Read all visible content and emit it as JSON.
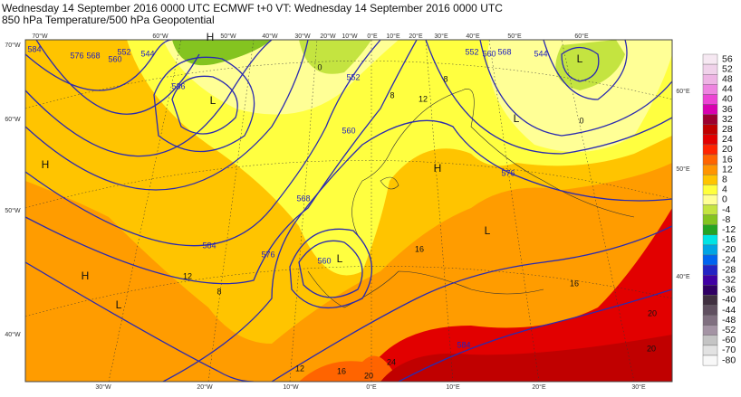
{
  "header": {
    "line1": "Wednesday 14 September 2016 0000 UTC  ECMWF  t+0  VT: Wednesday 14 September 2016 0000 UTC",
    "line2": "850 hPa Temperature/500 hPa Geopotential"
  },
  "colorbar": {
    "labels": [
      "56",
      "52",
      "48",
      "44",
      "40",
      "36",
      "32",
      "28",
      "24",
      "20",
      "16",
      "12",
      "8",
      "4",
      "0",
      "-4",
      "-8",
      "-12",
      "-16",
      "-20",
      "-24",
      "-28",
      "-32",
      "-36",
      "-40",
      "-44",
      "-48",
      "-52",
      "-60",
      "-70",
      "-80"
    ],
    "colors": [
      "#f6e8f2",
      "#f0d2ea",
      "#eeb4e4",
      "#ee84e0",
      "#ec44d4",
      "#d800b0",
      "#9c0030",
      "#c00000",
      "#e20000",
      "#ff2400",
      "#ff6400",
      "#ff9400",
      "#ffc400",
      "#ffff3c",
      "#ffff96",
      "#c4e440",
      "#84c420",
      "#24a424",
      "#00e4e4",
      "#00a4e4",
      "#0064f0",
      "#2424c4",
      "#4000a4",
      "#300064",
      "#403040",
      "#605060",
      "#807080",
      "#a494a4",
      "#c4c4c4",
      "#e2e2e2",
      "#f8f8f8"
    ]
  },
  "pressure_centers": [
    "H",
    "L",
    "L",
    "L",
    "H",
    "H",
    "L",
    "L",
    "H",
    "L"
  ],
  "geopotential_labels": [
    "584",
    "576",
    "568",
    "560",
    "552",
    "544",
    "536",
    "552",
    "560",
    "568",
    "576",
    "584",
    "560",
    "576",
    "584",
    "552",
    "560",
    "568",
    "544"
  ],
  "temperature_labels": [
    "8",
    "12",
    "8",
    "0",
    "16",
    "12",
    "8",
    "12",
    "16",
    "20",
    "24",
    "16",
    "20",
    "20",
    "0"
  ],
  "lat_labels": [
    "70°W",
    "60°W",
    "50°W",
    "40°W",
    "60°E",
    "50°E",
    "40°E"
  ],
  "top_lon_labels": [
    "70°W",
    "60°W",
    "50°W",
    "40°W",
    "30°W",
    "20°W",
    "10°W",
    "0°E",
    "10°E",
    "20°E",
    "30°E",
    "40°E",
    "50°E",
    "60°E"
  ],
  "bottom_lon_labels": [
    "30°W",
    "20°W",
    "10°W",
    "0°E",
    "10°E",
    "20°E",
    "30°E"
  ]
}
